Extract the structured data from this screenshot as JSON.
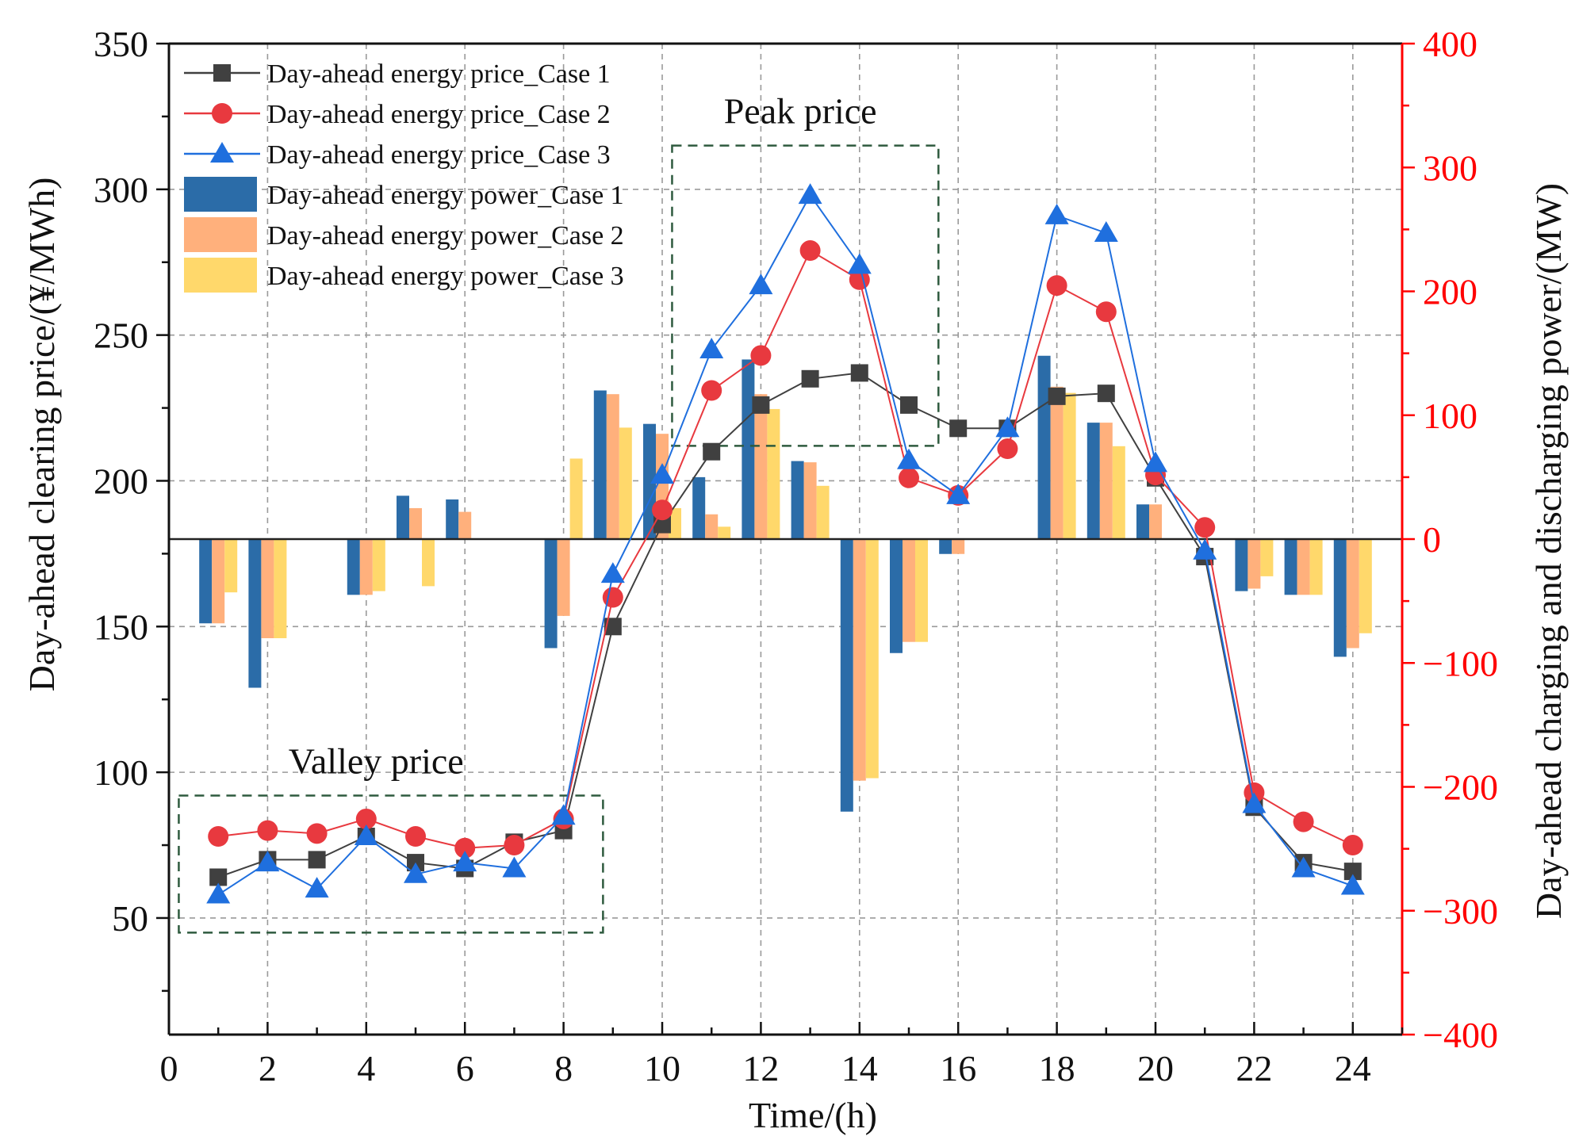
{
  "chart_data": {
    "type": "bar+line",
    "x": [
      1,
      2,
      3,
      4,
      5,
      6,
      7,
      8,
      9,
      10,
      11,
      12,
      13,
      14,
      15,
      16,
      17,
      18,
      19,
      20,
      21,
      22,
      23,
      24
    ],
    "xlabel": "Time/(h)",
    "ylabel_left": "Day-ahead clearing price/(¥/MWh)",
    "ylabel_right": "Day-ahead charging and discharging power/(MW)",
    "xlim": [
      0,
      25
    ],
    "ylim_left": [
      10,
      350
    ],
    "ylim_right": [
      -400,
      400
    ],
    "x_ticks": [
      0,
      2,
      4,
      6,
      8,
      10,
      12,
      14,
      16,
      18,
      20,
      22,
      24
    ],
    "y_ticks_left": [
      50,
      100,
      150,
      200,
      250,
      300,
      350
    ],
    "y_ticks_right": [
      -400,
      -300,
      -200,
      -100,
      0,
      100,
      200,
      300,
      400
    ],
    "y_ticks_right_labels": [
      "−400",
      "−300",
      "−200",
      "−100",
      "0",
      "100",
      "200",
      "300",
      "400"
    ],
    "grid": true,
    "legend_position": "top-left",
    "price_series": [
      {
        "name": "Day-ahead energy price_Case 1",
        "color": "#404040",
        "marker": "square",
        "values": [
          64,
          70,
          70,
          78,
          69,
          67,
          76,
          80,
          150,
          185,
          210,
          226,
          235,
          237,
          226,
          218,
          218,
          229,
          230,
          201,
          174,
          88,
          69,
          66
        ]
      },
      {
        "name": "Day-ahead energy price_Case 2",
        "color": "#e8393f",
        "marker": "circle",
        "values": [
          78,
          80,
          79,
          84,
          78,
          74,
          75,
          84,
          160,
          190,
          231,
          243,
          279,
          269,
          201,
          195,
          211,
          267,
          258,
          202,
          184,
          93,
          83,
          75
        ]
      },
      {
        "name": "Day-ahead energy price_Case 3",
        "color": "#1f6fde",
        "marker": "triangle",
        "values": [
          58,
          69,
          60,
          78,
          65,
          69,
          67,
          85,
          168,
          202,
          245,
          267,
          298,
          274,
          207,
          195,
          218,
          291,
          285,
          206,
          176,
          89,
          67,
          61
        ]
      }
    ],
    "power_series": [
      {
        "name": "Day-ahead energy power_Case 1",
        "color": "#2b6ca8",
        "values": [
          -68,
          -120,
          0,
          -45,
          35,
          32,
          0,
          -88,
          120,
          93,
          50,
          145,
          63,
          -220,
          -92,
          -12,
          0,
          148,
          94,
          28,
          0,
          -42,
          -45,
          -95
        ]
      },
      {
        "name": "Day-ahead energy power_Case 2",
        "color": "#ffb07c",
        "values": [
          -68,
          -80,
          0,
          -45,
          25,
          22,
          0,
          -62,
          117,
          85,
          20,
          117,
          62,
          -195,
          -83,
          -12,
          0,
          123,
          94,
          28,
          0,
          -40,
          -45,
          -88
        ]
      },
      {
        "name": "Day-ahead energy power_Case 3",
        "color": "#ffd86b",
        "values": [
          -43,
          -80,
          0,
          -42,
          -38,
          0,
          0,
          65,
          90,
          25,
          10,
          105,
          43,
          -193,
          -83,
          0,
          0,
          118,
          75,
          0,
          0,
          -30,
          -45,
          -76
        ]
      }
    ],
    "annotations": [
      {
        "text": "Peak price",
        "x_range": [
          10.2,
          15.6
        ],
        "y_range_left": [
          212,
          315
        ]
      },
      {
        "text": "Valley price",
        "x_range": [
          0.2,
          8.8
        ],
        "y_range_left": [
          45,
          92
        ]
      }
    ]
  }
}
